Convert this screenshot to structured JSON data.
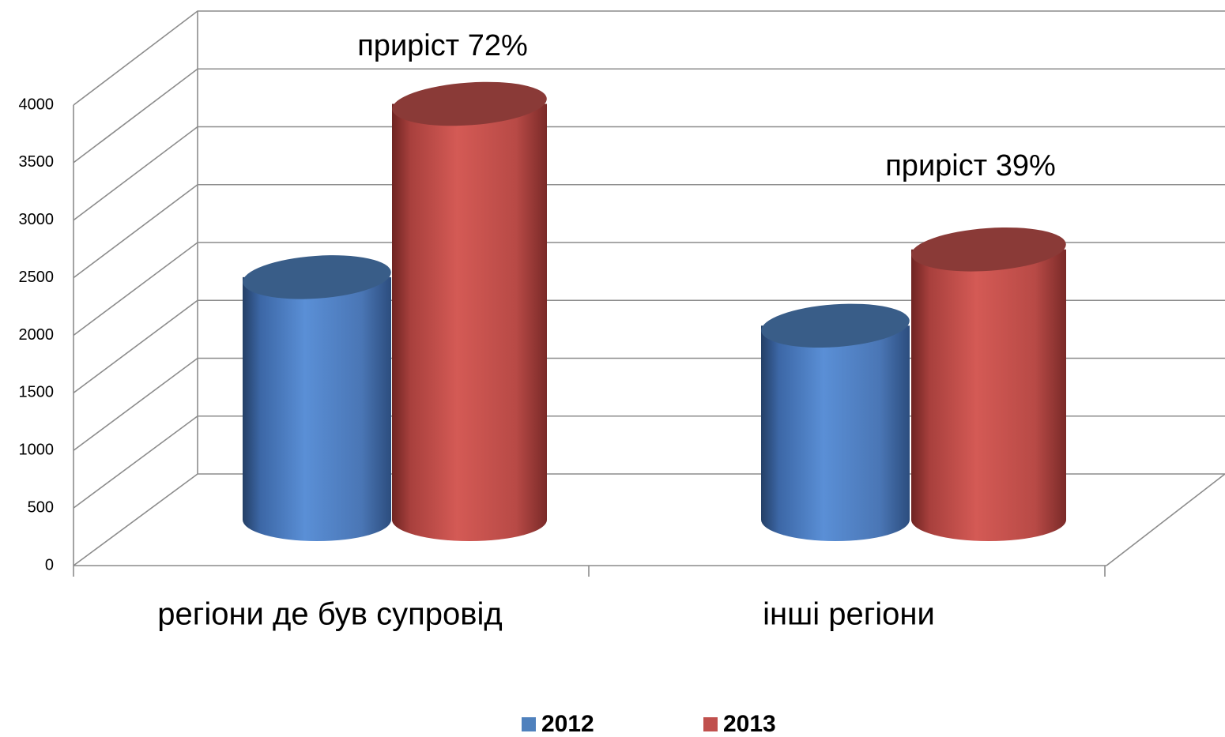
{
  "chart_data": {
    "type": "cylinder",
    "categories": [
      "регіони де був супровід",
      "інші регіони"
    ],
    "series": [
      {
        "name": "2012",
        "color": "#4f81bd",
        "values": [
          2100,
          1680
        ]
      },
      {
        "name": "2013",
        "color": "#c0504d",
        "values": [
          3600,
          2340
        ]
      }
    ],
    "annotations": [
      "приріст 72%",
      "приріст 39%"
    ],
    "ylim": [
      0,
      4000
    ],
    "yticks": [
      0,
      500,
      1000,
      1500,
      2000,
      2500,
      3000,
      3500,
      4000
    ],
    "grid": true,
    "legend": "bottom"
  }
}
